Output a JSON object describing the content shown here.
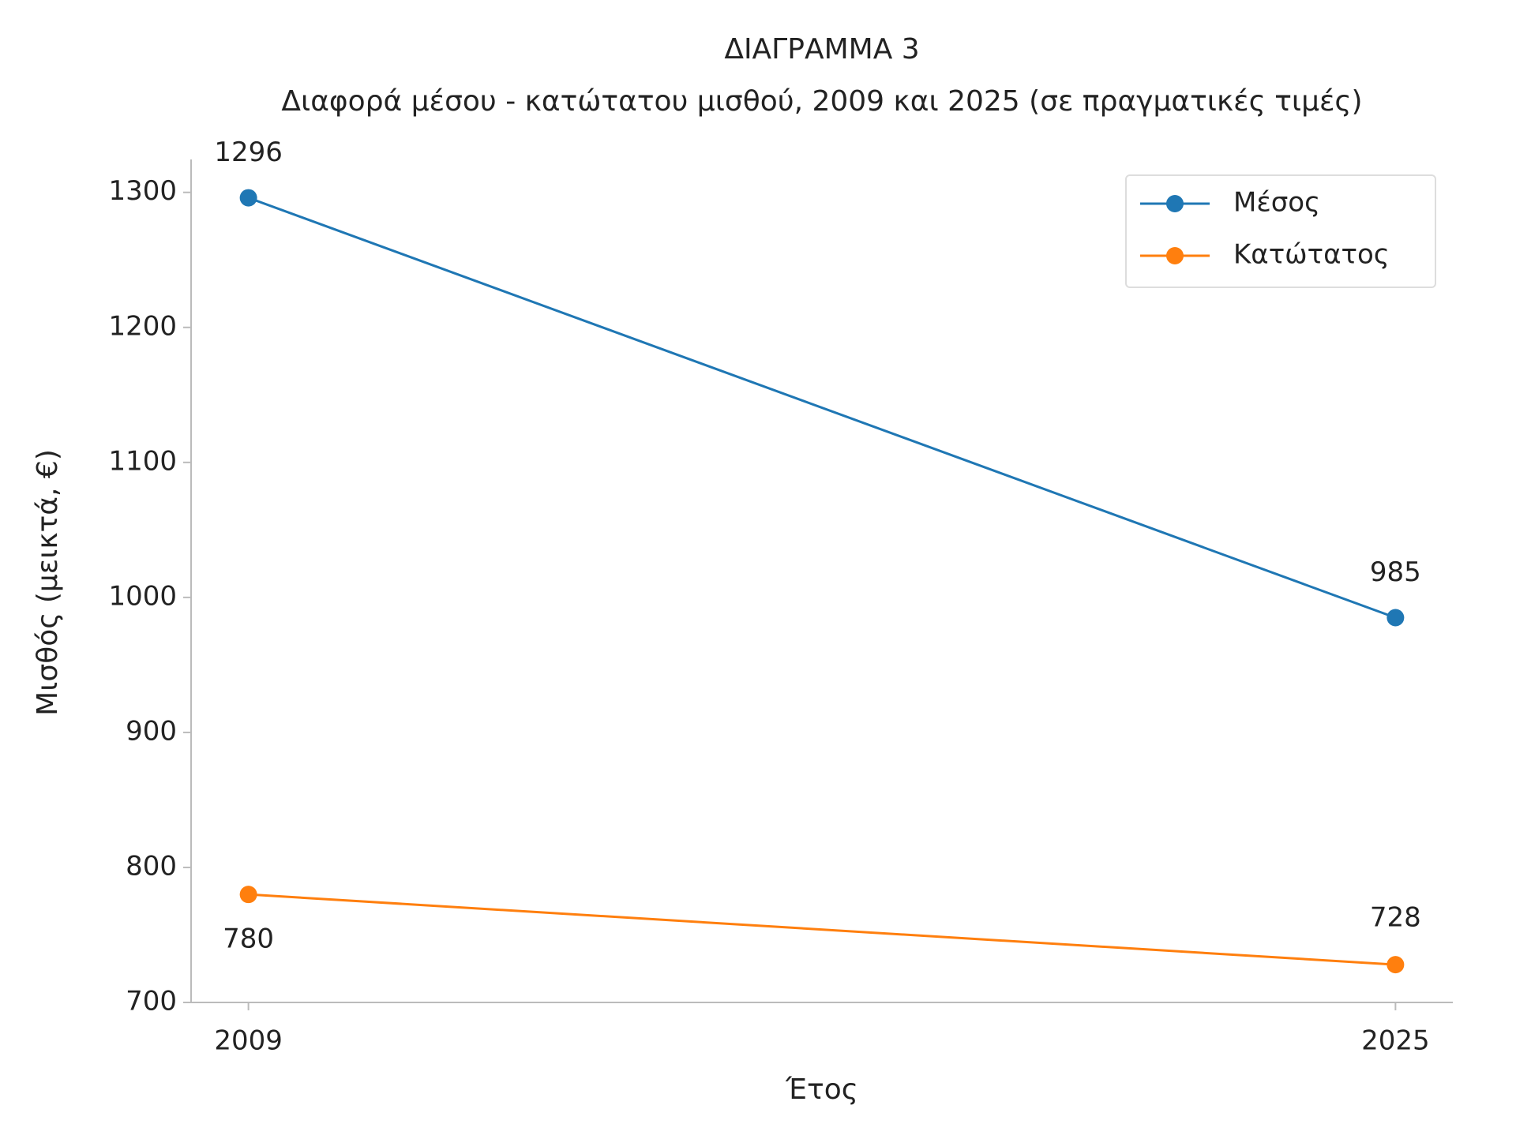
{
  "chart_data": {
    "type": "line",
    "title": "ΔΙΑΓΡΑΜΜΑ 3",
    "subtitle": "Διαφορά μέσου - κατώτατου μισθού, 2009 και 2025 (σε πραγματικές τιμές)",
    "x_label": "Έτος",
    "y_label": "Μισθός (μεικτά, €)",
    "x": [
      2009,
      2025
    ],
    "series": [
      {
        "name": "Μέσος",
        "color": "#1f77b4",
        "values": [
          1296,
          985
        ]
      },
      {
        "name": "Κατώτατος",
        "color": "#ff7f0e",
        "values": [
          780,
          728
        ]
      }
    ],
    "xlim": [
      2008.2,
      2025.8
    ],
    "xticks": [
      2009,
      2025
    ],
    "ylim": [
      700,
      1324.4
    ],
    "yticks": [
      700,
      800,
      900,
      1000,
      1100,
      1200,
      1300
    ],
    "legend_position": "upper right"
  }
}
